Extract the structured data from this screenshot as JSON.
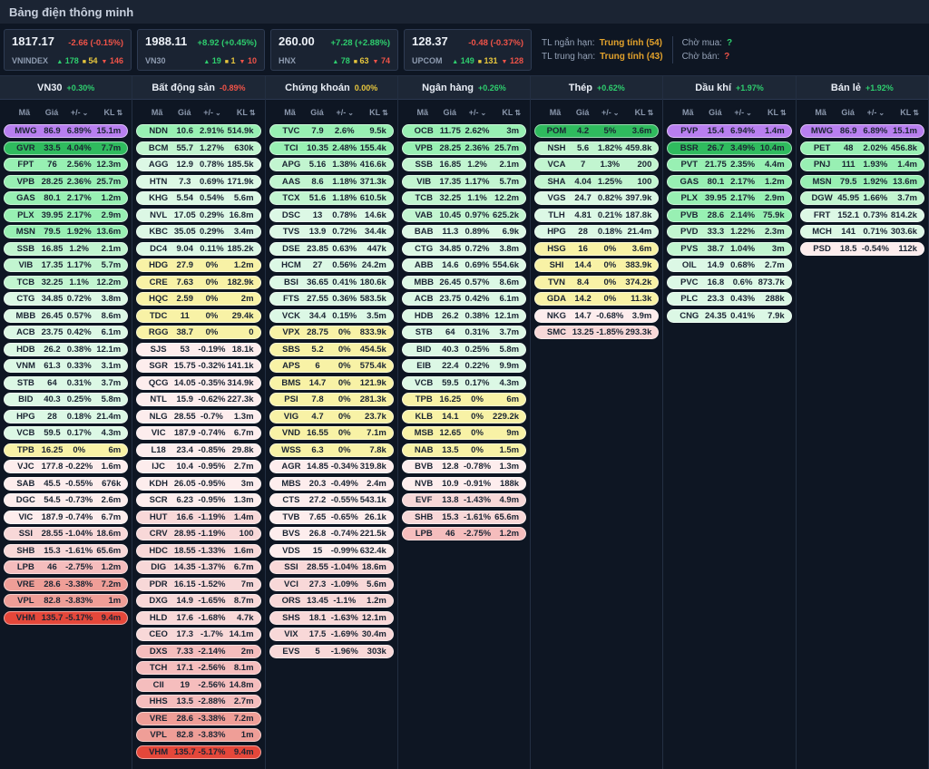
{
  "title": "Bảng điện thông minh",
  "indices": [
    {
      "name": "VNINDEX",
      "value": "1817.17",
      "change": "-2.66 (-0.15%)",
      "dir": "down",
      "adv": "178",
      "unch": "54",
      "dec": "146"
    },
    {
      "name": "VN30",
      "value": "1988.11",
      "change": "+8.92 (+0.45%)",
      "dir": "up",
      "adv": "19",
      "unch": "1",
      "dec": "10"
    },
    {
      "name": "HNX",
      "value": "260.00",
      "change": "+7.28 (+2.88%)",
      "dir": "up",
      "adv": "78",
      "unch": "63",
      "dec": "74"
    },
    {
      "name": "UPCOM",
      "value": "128.37",
      "change": "-0.48 (-0.37%)",
      "dir": "down",
      "adv": "149",
      "unch": "131",
      "dec": "128"
    }
  ],
  "signals": {
    "short_label": "TL ngắn hạn:",
    "short_value": "Trung tính (54)",
    "mid_label": "TL trung hạn:",
    "mid_value": "Trung tính (43)",
    "buy_label": "Chờ mua:",
    "buy_value": "?",
    "sell_label": "Chờ bán:",
    "sell_value": "?"
  },
  "table_headers": {
    "code": "Mã",
    "price": "Giá",
    "change": "+/-",
    "volume": "KL",
    "change_sort_icon": "⌄",
    "volume_sort_icon": "⇅"
  },
  "breadth_icons": {
    "up": "▲",
    "unchanged": "■",
    "down": "▼"
  },
  "colors": {
    "ceil": "#b87ff0",
    "g1": "#2fbb5e",
    "g2": "#98f0b3",
    "g3": "#c2f5d0",
    "g4": "#dcf8e5",
    "ref": "#f8f2a6",
    "r4": "#fdeded",
    "r3": "#f8d8d8",
    "r2": "#f5bdbd",
    "r1": "#ef9e97",
    "floor": "#e5473a",
    "up": "#2ece6e",
    "down": "#ef5348",
    "flat": "#e8c73d"
  },
  "sectors": [
    {
      "name": "VN30",
      "slug": "vn30",
      "pct": "+0.30%",
      "trend": "up",
      "rows": [
        [
          "MWG",
          "86.9",
          "6.89%",
          "15.1m",
          "ceil"
        ],
        [
          "GVR",
          "33.5",
          "4.04%",
          "7.7m",
          "g1"
        ],
        [
          "FPT",
          "76",
          "2.56%",
          "12.3m",
          "g2"
        ],
        [
          "VPB",
          "28.25",
          "2.36%",
          "25.7m",
          "g2"
        ],
        [
          "GAS",
          "80.1",
          "2.17%",
          "1.2m",
          "g2"
        ],
        [
          "PLX",
          "39.95",
          "2.17%",
          "2.9m",
          "g2"
        ],
        [
          "MSN",
          "79.5",
          "1.92%",
          "13.6m",
          "g2"
        ],
        [
          "SSB",
          "16.85",
          "1.2%",
          "2.1m",
          "g3"
        ],
        [
          "VIB",
          "17.35",
          "1.17%",
          "5.7m",
          "g3"
        ],
        [
          "TCB",
          "32.25",
          "1.1%",
          "12.2m",
          "g3"
        ],
        [
          "CTG",
          "34.85",
          "0.72%",
          "3.8m",
          "g4"
        ],
        [
          "MBB",
          "26.45",
          "0.57%",
          "8.6m",
          "g4"
        ],
        [
          "ACB",
          "23.75",
          "0.42%",
          "6.1m",
          "g4"
        ],
        [
          "HDB",
          "26.2",
          "0.38%",
          "12.1m",
          "g4"
        ],
        [
          "VNM",
          "61.3",
          "0.33%",
          "3.1m",
          "g4"
        ],
        [
          "STB",
          "64",
          "0.31%",
          "3.7m",
          "g4"
        ],
        [
          "BID",
          "40.3",
          "0.25%",
          "5.8m",
          "g4"
        ],
        [
          "HPG",
          "28",
          "0.18%",
          "21.4m",
          "g4"
        ],
        [
          "VCB",
          "59.5",
          "0.17%",
          "4.3m",
          "g4"
        ],
        [
          "TPB",
          "16.25",
          "0%",
          "6m",
          "ref"
        ],
        [
          "VJC",
          "177.8",
          "-0.22%",
          "1.6m",
          "r4"
        ],
        [
          "SAB",
          "45.5",
          "-0.55%",
          "676k",
          "r4"
        ],
        [
          "DGC",
          "54.5",
          "-0.73%",
          "2.6m",
          "r4"
        ],
        [
          "VIC",
          "187.9",
          "-0.74%",
          "6.7m",
          "r4"
        ],
        [
          "SSI",
          "28.55",
          "-1.04%",
          "18.6m",
          "r3"
        ],
        [
          "SHB",
          "15.3",
          "-1.61%",
          "65.6m",
          "r3"
        ],
        [
          "LPB",
          "46",
          "-2.75%",
          "1.2m",
          "r2"
        ],
        [
          "VRE",
          "28.6",
          "-3.38%",
          "7.2m",
          "r1"
        ],
        [
          "VPL",
          "82.8",
          "-3.83%",
          "1m",
          "r1"
        ],
        [
          "VHM",
          "135.7",
          "-5.17%",
          "9.4m",
          "floor"
        ]
      ]
    },
    {
      "name": "Bất động sản",
      "slug": "bat-dong-san",
      "pct": "-0.89%",
      "trend": "down",
      "rows": [
        [
          "NDN",
          "10.6",
          "2.91%",
          "514.9k",
          "g2"
        ],
        [
          "BCM",
          "55.7",
          "1.27%",
          "630k",
          "g3"
        ],
        [
          "AGG",
          "12.9",
          "0.78%",
          "185.5k",
          "g4"
        ],
        [
          "HTN",
          "7.3",
          "0.69%",
          "171.9k",
          "g4"
        ],
        [
          "KHG",
          "5.54",
          "0.54%",
          "5.6m",
          "g4"
        ],
        [
          "NVL",
          "17.05",
          "0.29%",
          "16.8m",
          "g4"
        ],
        [
          "KBC",
          "35.05",
          "0.29%",
          "3.4m",
          "g4"
        ],
        [
          "DC4",
          "9.04",
          "0.11%",
          "185.2k",
          "g4"
        ],
        [
          "HDG",
          "27.9",
          "0%",
          "1.2m",
          "ref"
        ],
        [
          "CRE",
          "7.63",
          "0%",
          "182.9k",
          "ref"
        ],
        [
          "HQC",
          "2.59",
          "0%",
          "2m",
          "ref"
        ],
        [
          "TDC",
          "11",
          "0%",
          "29.4k",
          "ref"
        ],
        [
          "RGG",
          "38.7",
          "0%",
          "0",
          "ref"
        ],
        [
          "SJS",
          "53",
          "-0.19%",
          "18.1k",
          "r4"
        ],
        [
          "SGR",
          "15.75",
          "-0.32%",
          "141.1k",
          "r4"
        ],
        [
          "QCG",
          "14.05",
          "-0.35%",
          "314.9k",
          "r4"
        ],
        [
          "NTL",
          "15.9",
          "-0.62%",
          "227.3k",
          "r4"
        ],
        [
          "NLG",
          "28.55",
          "-0.7%",
          "1.3m",
          "r4"
        ],
        [
          "VIC",
          "187.9",
          "-0.74%",
          "6.7m",
          "r4"
        ],
        [
          "L18",
          "23.4",
          "-0.85%",
          "29.8k",
          "r4"
        ],
        [
          "IJC",
          "10.4",
          "-0.95%",
          "2.7m",
          "r4"
        ],
        [
          "KDH",
          "26.05",
          "-0.95%",
          "3m",
          "r4"
        ],
        [
          "SCR",
          "6.23",
          "-0.95%",
          "1.3m",
          "r4"
        ],
        [
          "HUT",
          "16.6",
          "-1.19%",
          "1.4m",
          "r3"
        ],
        [
          "CRV",
          "28.95",
          "-1.19%",
          "100",
          "r3"
        ],
        [
          "HDC",
          "18.55",
          "-1.33%",
          "1.6m",
          "r3"
        ],
        [
          "DIG",
          "14.35",
          "-1.37%",
          "6.7m",
          "r3"
        ],
        [
          "PDR",
          "16.15",
          "-1.52%",
          "7m",
          "r3"
        ],
        [
          "DXG",
          "14.9",
          "-1.65%",
          "8.7m",
          "r3"
        ],
        [
          "HLD",
          "17.6",
          "-1.68%",
          "4.7k",
          "r3"
        ],
        [
          "CEO",
          "17.3",
          "-1.7%",
          "14.1m",
          "r3"
        ],
        [
          "DXS",
          "7.33",
          "-2.14%",
          "2m",
          "r2"
        ],
        [
          "TCH",
          "17.1",
          "-2.56%",
          "8.1m",
          "r2"
        ],
        [
          "CII",
          "19",
          "-2.56%",
          "14.8m",
          "r2"
        ],
        [
          "HHS",
          "13.5",
          "-2.88%",
          "2.7m",
          "r2"
        ],
        [
          "VRE",
          "28.6",
          "-3.38%",
          "7.2m",
          "r1"
        ],
        [
          "VPL",
          "82.8",
          "-3.83%",
          "1m",
          "r1"
        ],
        [
          "VHM",
          "135.7",
          "-5.17%",
          "9.4m",
          "floor"
        ]
      ]
    },
    {
      "name": "Chứng khoán",
      "slug": "chung-khoan",
      "pct": "0.00%",
      "trend": "flat",
      "rows": [
        [
          "TVC",
          "7.9",
          "2.6%",
          "9.5k",
          "g2"
        ],
        [
          "TCI",
          "10.35",
          "2.48%",
          "155.4k",
          "g2"
        ],
        [
          "APG",
          "5.16",
          "1.38%",
          "416.6k",
          "g3"
        ],
        [
          "AAS",
          "8.6",
          "1.18%",
          "371.3k",
          "g3"
        ],
        [
          "TCX",
          "51.6",
          "1.18%",
          "610.5k",
          "g3"
        ],
        [
          "DSC",
          "13",
          "0.78%",
          "14.6k",
          "g4"
        ],
        [
          "TVS",
          "13.9",
          "0.72%",
          "34.4k",
          "g4"
        ],
        [
          "DSE",
          "23.85",
          "0.63%",
          "447k",
          "g4"
        ],
        [
          "HCM",
          "27",
          "0.56%",
          "24.2m",
          "g4"
        ],
        [
          "BSI",
          "36.65",
          "0.41%",
          "180.6k",
          "g4"
        ],
        [
          "FTS",
          "27.55",
          "0.36%",
          "583.5k",
          "g4"
        ],
        [
          "VCK",
          "34.4",
          "0.15%",
          "3.5m",
          "g4"
        ],
        [
          "VPX",
          "28.75",
          "0%",
          "833.9k",
          "ref"
        ],
        [
          "SBS",
          "5.2",
          "0%",
          "454.5k",
          "ref"
        ],
        [
          "APS",
          "6",
          "0%",
          "575.4k",
          "ref"
        ],
        [
          "BMS",
          "14.7",
          "0%",
          "121.9k",
          "ref"
        ],
        [
          "PSI",
          "7.8",
          "0%",
          "281.3k",
          "ref"
        ],
        [
          "VIG",
          "4.7",
          "0%",
          "23.7k",
          "ref"
        ],
        [
          "VND",
          "16.55",
          "0%",
          "7.1m",
          "ref"
        ],
        [
          "WSS",
          "6.3",
          "0%",
          "7.8k",
          "ref"
        ],
        [
          "AGR",
          "14.85",
          "-0.34%",
          "319.8k",
          "r4"
        ],
        [
          "MBS",
          "20.3",
          "-0.49%",
          "2.4m",
          "r4"
        ],
        [
          "CTS",
          "27.2",
          "-0.55%",
          "543.1k",
          "r4"
        ],
        [
          "TVB",
          "7.65",
          "-0.65%",
          "26.1k",
          "r4"
        ],
        [
          "BVS",
          "26.8",
          "-0.74%",
          "221.5k",
          "r4"
        ],
        [
          "VDS",
          "15",
          "-0.99%",
          "632.4k",
          "r4"
        ],
        [
          "SSI",
          "28.55",
          "-1.04%",
          "18.6m",
          "r3"
        ],
        [
          "VCI",
          "27.3",
          "-1.09%",
          "5.6m",
          "r3"
        ],
        [
          "ORS",
          "13.45",
          "-1.1%",
          "1.2m",
          "r3"
        ],
        [
          "SHS",
          "18.1",
          "-1.63%",
          "12.1m",
          "r3"
        ],
        [
          "VIX",
          "17.5",
          "-1.69%",
          "30.4m",
          "r3"
        ],
        [
          "EVS",
          "5",
          "-1.96%",
          "303k",
          "r3"
        ]
      ]
    },
    {
      "name": "Ngân hàng",
      "slug": "ngan-hang",
      "pct": "+0.26%",
      "trend": "up",
      "rows": [
        [
          "OCB",
          "11.75",
          "2.62%",
          "3m",
          "g2"
        ],
        [
          "VPB",
          "28.25",
          "2.36%",
          "25.7m",
          "g2"
        ],
        [
          "SSB",
          "16.85",
          "1.2%",
          "2.1m",
          "g3"
        ],
        [
          "VIB",
          "17.35",
          "1.17%",
          "5.7m",
          "g3"
        ],
        [
          "TCB",
          "32.25",
          "1.1%",
          "12.2m",
          "g3"
        ],
        [
          "VAB",
          "10.45",
          "0.97%",
          "625.2k",
          "g3"
        ],
        [
          "BAB",
          "11.3",
          "0.89%",
          "6.9k",
          "g4"
        ],
        [
          "CTG",
          "34.85",
          "0.72%",
          "3.8m",
          "g4"
        ],
        [
          "ABB",
          "14.6",
          "0.69%",
          "554.6k",
          "g4"
        ],
        [
          "MBB",
          "26.45",
          "0.57%",
          "8.6m",
          "g4"
        ],
        [
          "ACB",
          "23.75",
          "0.42%",
          "6.1m",
          "g4"
        ],
        [
          "HDB",
          "26.2",
          "0.38%",
          "12.1m",
          "g4"
        ],
        [
          "STB",
          "64",
          "0.31%",
          "3.7m",
          "g4"
        ],
        [
          "BID",
          "40.3",
          "0.25%",
          "5.8m",
          "g4"
        ],
        [
          "EIB",
          "22.4",
          "0.22%",
          "9.9m",
          "g4"
        ],
        [
          "VCB",
          "59.5",
          "0.17%",
          "4.3m",
          "g4"
        ],
        [
          "TPB",
          "16.25",
          "0%",
          "6m",
          "ref"
        ],
        [
          "KLB",
          "14.1",
          "0%",
          "229.2k",
          "ref"
        ],
        [
          "MSB",
          "12.65",
          "0%",
          "9m",
          "ref"
        ],
        [
          "NAB",
          "13.5",
          "0%",
          "1.5m",
          "ref"
        ],
        [
          "BVB",
          "12.8",
          "-0.78%",
          "1.3m",
          "r4"
        ],
        [
          "NVB",
          "10.9",
          "-0.91%",
          "188k",
          "r4"
        ],
        [
          "EVF",
          "13.8",
          "-1.43%",
          "4.9m",
          "r3"
        ],
        [
          "SHB",
          "15.3",
          "-1.61%",
          "65.6m",
          "r3"
        ],
        [
          "LPB",
          "46",
          "-2.75%",
          "1.2m",
          "r2"
        ]
      ]
    },
    {
      "name": "Thép",
      "slug": "thep",
      "pct": "+0.62%",
      "trend": "up",
      "rows": [
        [
          "POM",
          "4.2",
          "5%",
          "3.6m",
          "g1"
        ],
        [
          "NSH",
          "5.6",
          "1.82%",
          "459.8k",
          "g3"
        ],
        [
          "VCA",
          "7",
          "1.3%",
          "200",
          "g3"
        ],
        [
          "SHA",
          "4.04",
          "1.25%",
          "100",
          "g3"
        ],
        [
          "VGS",
          "24.7",
          "0.82%",
          "397.9k",
          "g4"
        ],
        [
          "TLH",
          "4.81",
          "0.21%",
          "187.8k",
          "g4"
        ],
        [
          "HPG",
          "28",
          "0.18%",
          "21.4m",
          "g4"
        ],
        [
          "HSG",
          "16",
          "0%",
          "3.6m",
          "ref"
        ],
        [
          "SHI",
          "14.4",
          "0%",
          "383.9k",
          "ref"
        ],
        [
          "TVN",
          "8.4",
          "0%",
          "374.2k",
          "ref"
        ],
        [
          "GDA",
          "14.2",
          "0%",
          "11.3k",
          "ref"
        ],
        [
          "NKG",
          "14.7",
          "-0.68%",
          "3.9m",
          "r4"
        ],
        [
          "SMC",
          "13.25",
          "-1.85%",
          "293.3k",
          "r3"
        ]
      ]
    },
    {
      "name": "Dầu khí",
      "slug": "dau-khi",
      "pct": "+1.97%",
      "trend": "up",
      "rows": [
        [
          "PVP",
          "15.4",
          "6.94%",
          "1.4m",
          "ceil"
        ],
        [
          "BSR",
          "26.7",
          "3.49%",
          "10.4m",
          "g1"
        ],
        [
          "PVT",
          "21.75",
          "2.35%",
          "4.4m",
          "g2"
        ],
        [
          "GAS",
          "80.1",
          "2.17%",
          "1.2m",
          "g2"
        ],
        [
          "PLX",
          "39.95",
          "2.17%",
          "2.9m",
          "g2"
        ],
        [
          "PVB",
          "28.6",
          "2.14%",
          "75.9k",
          "g2"
        ],
        [
          "PVD",
          "33.3",
          "1.22%",
          "2.3m",
          "g3"
        ],
        [
          "PVS",
          "38.7",
          "1.04%",
          "3m",
          "g3"
        ],
        [
          "OIL",
          "14.9",
          "0.68%",
          "2.7m",
          "g4"
        ],
        [
          "PVC",
          "16.8",
          "0.6%",
          "873.7k",
          "g4"
        ],
        [
          "PLC",
          "23.3",
          "0.43%",
          "288k",
          "g4"
        ],
        [
          "CNG",
          "24.35",
          "0.41%",
          "7.9k",
          "g4"
        ]
      ]
    },
    {
      "name": "Bán lẻ",
      "slug": "ban-le",
      "pct": "+1.92%",
      "trend": "up",
      "rows": [
        [
          "MWG",
          "86.9",
          "6.89%",
          "15.1m",
          "ceil"
        ],
        [
          "PET",
          "48",
          "2.02%",
          "456.8k",
          "g2"
        ],
        [
          "PNJ",
          "111",
          "1.93%",
          "1.4m",
          "g2"
        ],
        [
          "MSN",
          "79.5",
          "1.92%",
          "13.6m",
          "g2"
        ],
        [
          "DGW",
          "45.95",
          "1.66%",
          "3.7m",
          "g3"
        ],
        [
          "FRT",
          "152.1",
          "0.73%",
          "814.2k",
          "g4"
        ],
        [
          "MCH",
          "141",
          "0.71%",
          "303.6k",
          "g4"
        ],
        [
          "PSD",
          "18.5",
          "-0.54%",
          "112k",
          "r4"
        ]
      ]
    }
  ]
}
